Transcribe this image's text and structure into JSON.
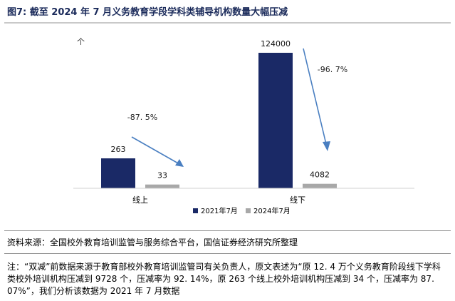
{
  "figure": {
    "title": "图7: 截至 2024 年 7 月义务教育学段学科类辅导机构数量大幅压减",
    "source": "资料来源：全国校外教育培训监管与服务综合平台，国信证券经济研究所整理",
    "note": "注：“双减”前数据来源于教育部校外教育培训监管司有关负责人，原文表述为“原 12. 4 万个义务教育阶段线下学科类校外培训机构压减到 9728 个，压减率为 92. 14%，原 263 个线上校外培训机构压减到 34 个，压减率为 87. 07%”，我们分析该数据为 2021 年 7 月数据"
  },
  "chart_data": {
    "type": "bar",
    "unit_label": "个",
    "categories": [
      "线上",
      "线下"
    ],
    "series": [
      {
        "name": "2021年7月",
        "values": [
          263,
          124000
        ],
        "value_labels": [
          "263",
          "124000"
        ],
        "color": "#1a2966"
      },
      {
        "name": "2024年7月",
        "values": [
          33,
          4082
        ],
        "value_labels": [
          "33",
          "4082"
        ],
        "color": "#a8a8a8"
      }
    ],
    "annotations": [
      "-87. 5%",
      "-96. 7%"
    ],
    "arrow_color": "#4a7fc1",
    "legend_position": "bottom",
    "grid": false
  }
}
